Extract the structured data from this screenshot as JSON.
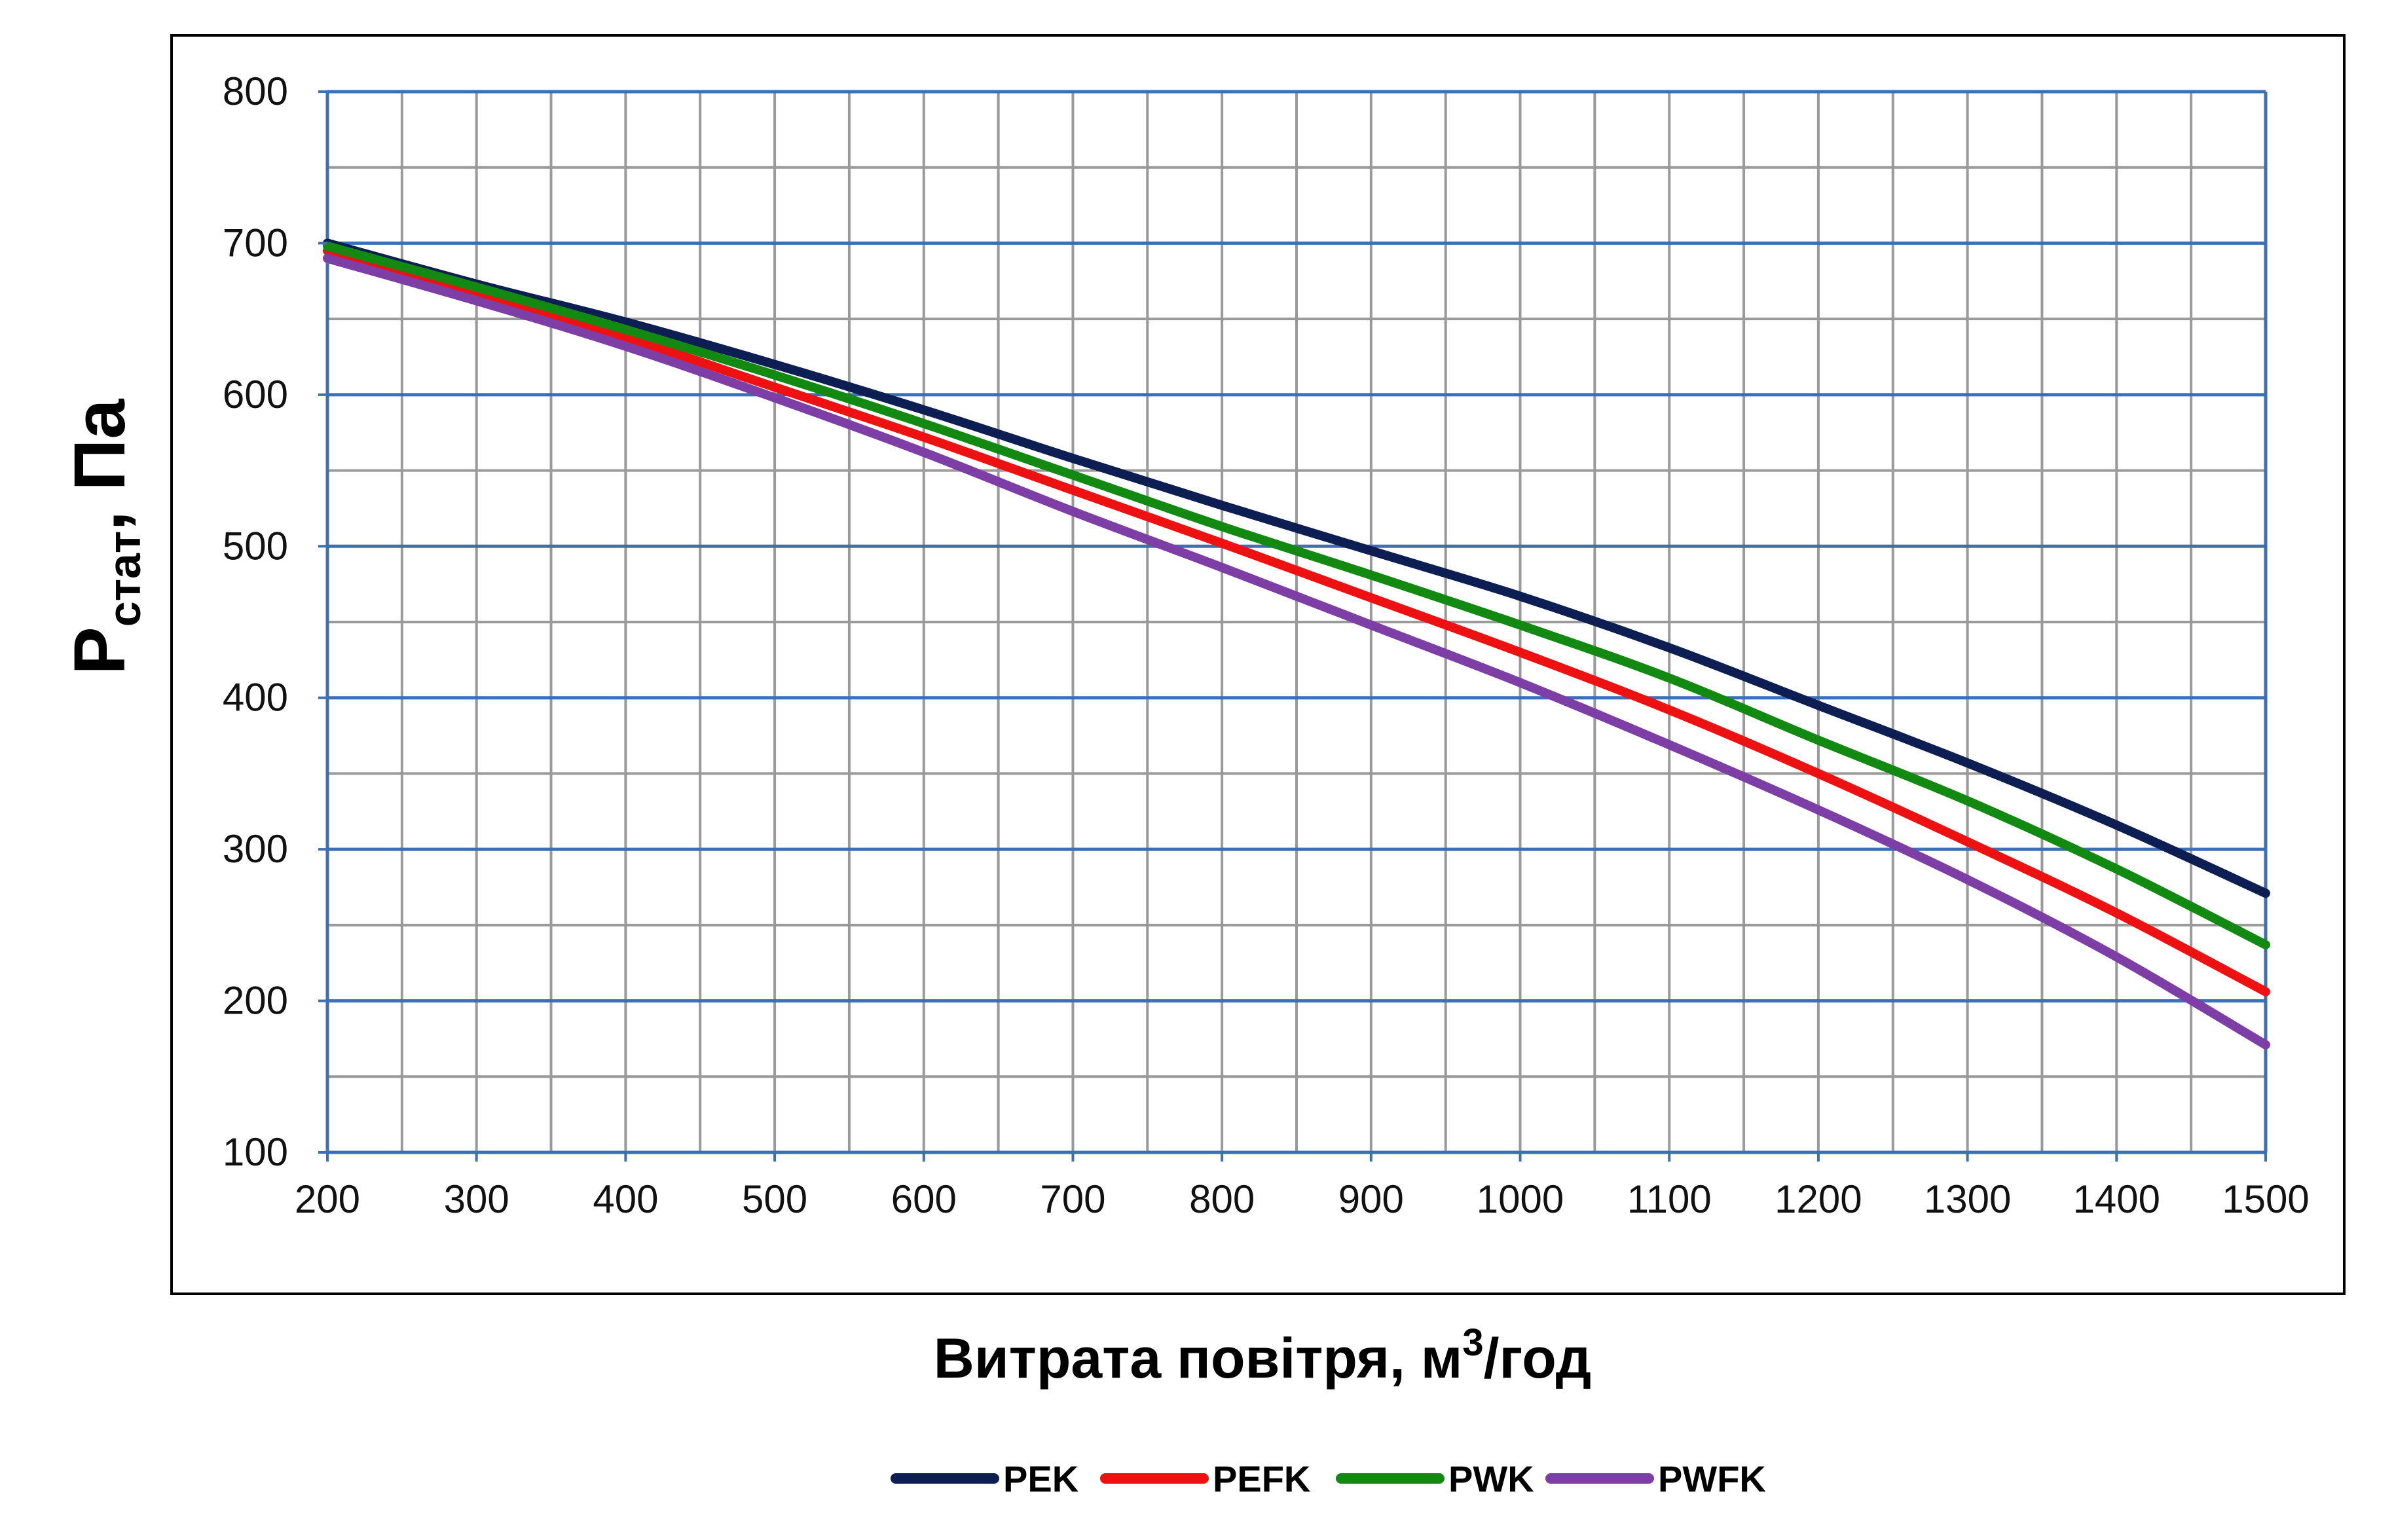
{
  "chart_data": {
    "type": "line",
    "title": "",
    "xlabel": "Витрата повітря, м",
    "xlabel_sup": "3",
    "xlabel_suffix": "/год",
    "ylabel": "P",
    "ylabel_sub": "стат",
    "ylabel_suffix": ", Па",
    "xlim": [
      200,
      1500
    ],
    "ylim": [
      100,
      800
    ],
    "xticks": [
      200,
      300,
      400,
      500,
      600,
      700,
      800,
      900,
      1000,
      1100,
      1200,
      1300,
      1400,
      1500
    ],
    "yticks": [
      100,
      200,
      300,
      400,
      500,
      600,
      700,
      800
    ],
    "minor_x_step": 50,
    "minor_y_step": 50,
    "grid": true,
    "legend_position": "bottom",
    "x": [
      200,
      300,
      400,
      500,
      600,
      700,
      800,
      900,
      1000,
      1100,
      1200,
      1300,
      1400,
      1500
    ],
    "series": [
      {
        "name": "PEK",
        "color": "#0d1f52",
        "values": [
          700,
          673,
          648,
          620,
          590,
          558,
          527,
          497,
          467,
          433,
          395,
          357,
          316,
          271
        ]
      },
      {
        "name": "PEFK",
        "color": "#ee1111",
        "values": [
          695,
          668,
          638,
          605,
          572,
          537,
          502,
          466,
          430,
          392,
          350,
          305,
          258,
          206
        ]
      },
      {
        "name": "PWK",
        "color": "#128a12",
        "values": [
          698,
          671,
          643,
          613,
          581,
          547,
          513,
          481,
          448,
          413,
          372,
          332,
          287,
          237
        ]
      },
      {
        "name": "PWFK",
        "color": "#7d3ea6",
        "values": [
          690,
          662,
          632,
          598,
          562,
          523,
          486,
          448,
          410,
          369,
          326,
          280,
          229,
          171
        ]
      }
    ]
  }
}
